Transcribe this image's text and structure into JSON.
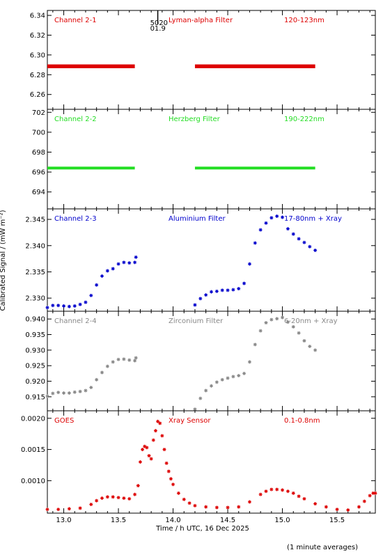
{
  "chart_data": [
    {
      "type": "scatter",
      "channel": "Channel 2-1",
      "filter": "Lyman-alpha Filter",
      "band": "120-123nm",
      "color": "#dd0000",
      "ylim": [
        6.245,
        6.345
      ],
      "yticks": [
        "6.26",
        "6.28",
        "6.30",
        "6.32",
        "6.34"
      ],
      "series_segments": [
        {
          "x": [
            12.85,
            13.65
          ],
          "y_start": 6.288,
          "y_end": 6.289
        },
        {
          "x": [
            14.2,
            15.3
          ],
          "y_start": 6.288,
          "y_end": 6.289
        }
      ]
    },
    {
      "type": "scatter",
      "channel": "Channel 2-2",
      "filter": "Herzberg Filter",
      "band": "190-222nm",
      "color": "#22dd22",
      "ylim": [
        692.3,
        702.3
      ],
      "yticks": [
        "694",
        "696",
        "698",
        "700",
        "702"
      ],
      "series_segments": [
        {
          "x": [
            12.85,
            13.65
          ],
          "y_start": 696.4,
          "y_end": 696.4
        },
        {
          "x": [
            14.2,
            15.3
          ],
          "y_start": 696.4,
          "y_end": 696.4
        }
      ]
    },
    {
      "type": "scatter",
      "channel": "Channel 2-3",
      "filter": "Aluminium Filter",
      "band": "17-80nm + Xray",
      "color": "#0000cc",
      "ylim": [
        2.3275,
        2.347
      ],
      "yticks": [
        "2.330",
        "2.335",
        "2.340",
        "2.345"
      ],
      "x": [
        12.85,
        12.9,
        12.95,
        13.0,
        13.05,
        13.1,
        13.15,
        13.2,
        13.25,
        13.3,
        13.35,
        13.4,
        13.45,
        13.5,
        13.55,
        13.6,
        13.65,
        13.66,
        14.2,
        14.25,
        14.3,
        14.35,
        14.4,
        14.45,
        14.5,
        14.55,
        14.6,
        14.65,
        14.7,
        14.75,
        14.8,
        14.85,
        14.9,
        14.95,
        15.0,
        15.05,
        15.1,
        15.15,
        15.2,
        15.25,
        15.3
      ],
      "y": [
        2.3282,
        2.3286,
        2.3286,
        2.3285,
        2.3284,
        2.3285,
        2.3288,
        2.3292,
        2.3305,
        2.3325,
        2.3342,
        2.3352,
        2.3356,
        2.3365,
        2.3368,
        2.3367,
        2.3368,
        2.3378,
        2.3287,
        2.3299,
        2.3306,
        2.3312,
        2.3313,
        2.3315,
        2.3315,
        2.3316,
        2.3318,
        2.3328,
        2.3365,
        2.3405,
        2.343,
        2.3443,
        2.3453,
        2.3456,
        2.3454,
        2.3432,
        2.3422,
        2.3413,
        2.3406,
        2.3398,
        2.3391
      ]
    },
    {
      "type": "scatter",
      "channel": "Channel 2-4",
      "filter": "Zirconium Filter",
      "band": "6-20nm + Xray",
      "color": "#888888",
      "ylim": [
        0.9105,
        0.9425
      ],
      "yticks": [
        "0.915",
        "0.920",
        "0.925",
        "0.930",
        "0.935",
        "0.940"
      ],
      "x": [
        12.85,
        12.9,
        12.95,
        13.0,
        13.05,
        13.1,
        13.15,
        13.2,
        13.25,
        13.3,
        13.35,
        13.4,
        13.45,
        13.5,
        13.55,
        13.6,
        13.65,
        13.66,
        14.2,
        14.25,
        14.3,
        14.35,
        14.4,
        14.45,
        14.5,
        14.55,
        14.6,
        14.65,
        14.7,
        14.75,
        14.8,
        14.85,
        14.9,
        14.95,
        15.0,
        15.05,
        15.1,
        15.15,
        15.2,
        15.25,
        15.3
      ],
      "y": [
        0.9152,
        0.9161,
        0.9164,
        0.9162,
        0.9162,
        0.9165,
        0.9167,
        0.917,
        0.918,
        0.9205,
        0.9228,
        0.9248,
        0.9262,
        0.927,
        0.9271,
        0.9268,
        0.9266,
        0.9275,
        0.911,
        0.9145,
        0.917,
        0.9185,
        0.9197,
        0.9205,
        0.921,
        0.9215,
        0.9218,
        0.9225,
        0.9262,
        0.9318,
        0.9362,
        0.9388,
        0.9398,
        0.9401,
        0.9405,
        0.939,
        0.9375,
        0.9355,
        0.933,
        0.9312,
        0.93
      ]
    },
    {
      "type": "scatter",
      "channel": "GOES",
      "filter": "Xray Sensor",
      "band": "0.1-0.8nm",
      "color": "#dd0000",
      "ylim": [
        0.00048,
        0.00212
      ],
      "yticks": [
        "0.0010",
        "0.0015",
        "0.0020"
      ],
      "x": [
        12.85,
        12.95,
        13.05,
        13.15,
        13.25,
        13.3,
        13.35,
        13.4,
        13.45,
        13.5,
        13.55,
        13.6,
        13.65,
        13.68,
        13.7,
        13.72,
        13.74,
        13.76,
        13.78,
        13.8,
        13.82,
        13.84,
        13.86,
        13.88,
        13.9,
        13.92,
        13.94,
        13.96,
        13.98,
        14.0,
        14.05,
        14.1,
        14.15,
        14.2,
        14.3,
        14.4,
        14.5,
        14.6,
        14.7,
        14.8,
        14.85,
        14.9,
        14.95,
        15.0,
        15.05,
        15.1,
        15.15,
        15.2,
        15.3,
        15.4,
        15.5,
        15.6,
        15.7,
        15.75,
        15.8,
        15.83,
        15.85
      ],
      "y": [
        0.00054,
        0.00054,
        0.00055,
        0.00056,
        0.00062,
        0.00068,
        0.00072,
        0.00074,
        0.00074,
        0.00073,
        0.00072,
        0.00071,
        0.00078,
        0.00092,
        0.0013,
        0.0015,
        0.00155,
        0.00153,
        0.0014,
        0.00135,
        0.00165,
        0.0018,
        0.00195,
        0.00192,
        0.00172,
        0.0015,
        0.00128,
        0.00115,
        0.00103,
        0.00094,
        0.0008,
        0.0007,
        0.00064,
        0.0006,
        0.00058,
        0.00057,
        0.00057,
        0.00058,
        0.00066,
        0.00078,
        0.00083,
        0.00086,
        0.00086,
        0.00085,
        0.00083,
        0.0008,
        0.00075,
        0.00071,
        0.00063,
        0.00058,
        0.00054,
        0.00053,
        0.00058,
        0.00067,
        0.00076,
        0.0008,
        0.0008
      ]
    }
  ],
  "x_axis": {
    "xlim": [
      12.85,
      15.85
    ],
    "ticks": [
      13.0,
      13.5,
      14.0,
      14.5,
      15.0,
      15.5
    ],
    "tick_labels": [
      "13.0",
      "13.5",
      "14.0",
      "14.5",
      "15.0",
      "15.5"
    ],
    "label": "Time / h UTC, 16 Dec 2025"
  },
  "y_axis_label": "Calibrated Signal / (mW m⁻²)",
  "marker": {
    "x": 13.86,
    "label_top": "5020",
    "label_bottom": "01.9"
  },
  "footnote": "(1 minute averages)"
}
